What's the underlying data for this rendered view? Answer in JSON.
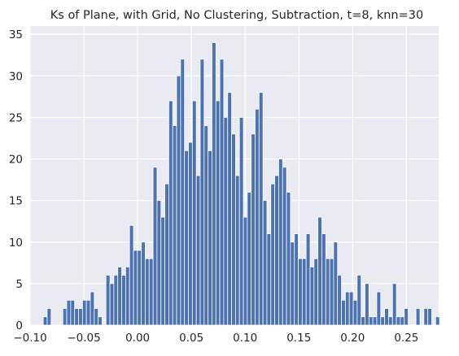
{
  "chart_data": {
    "type": "bar",
    "title": "Ks of Plane, with Grid, No Clustering, Subtraction, t=8, knn=30",
    "xlabel": "",
    "ylabel": "",
    "xlim": [
      -0.1,
      0.28
    ],
    "ylim": [
      0,
      36
    ],
    "grid": true,
    "bar_color": "#4c72b0",
    "background_color": "#eaeaf2",
    "bin_start": -0.0878,
    "bin_width": 0.00365,
    "values": [
      1,
      2,
      0,
      0,
      0,
      2,
      3,
      3,
      2,
      2,
      3,
      3,
      4,
      2,
      1,
      0,
      6,
      5,
      6,
      7,
      6,
      7,
      12,
      9,
      9,
      10,
      8,
      8,
      19,
      15,
      13,
      17,
      27,
      24,
      30,
      32,
      21,
      22,
      27,
      18,
      32,
      24,
      21,
      34,
      27,
      32,
      25,
      28,
      23,
      18,
      25,
      13,
      16,
      23,
      26,
      28,
      15,
      11,
      17,
      18,
      20,
      19,
      16,
      10,
      11,
      8,
      8,
      11,
      7,
      8,
      13,
      11,
      8,
      8,
      10,
      6,
      3,
      4,
      4,
      3,
      6,
      1,
      5,
      1,
      1,
      4,
      1,
      2,
      1,
      5,
      1,
      1,
      2,
      0,
      0,
      2,
      0,
      2,
      2,
      0,
      1
    ],
    "x_ticks": [
      {
        "value": -0.1,
        "label": "−0.10"
      },
      {
        "value": -0.05,
        "label": "−0.05"
      },
      {
        "value": 0.0,
        "label": "0.00"
      },
      {
        "value": 0.05,
        "label": "0.05"
      },
      {
        "value": 0.1,
        "label": "0.10"
      },
      {
        "value": 0.15,
        "label": "0.15"
      },
      {
        "value": 0.2,
        "label": "0.20"
      },
      {
        "value": 0.25,
        "label": "0.25"
      }
    ],
    "y_ticks": [
      {
        "value": 0,
        "label": "0"
      },
      {
        "value": 5,
        "label": "5"
      },
      {
        "value": 10,
        "label": "10"
      },
      {
        "value": 15,
        "label": "15"
      },
      {
        "value": 20,
        "label": "20"
      },
      {
        "value": 25,
        "label": "25"
      },
      {
        "value": 30,
        "label": "30"
      },
      {
        "value": 35,
        "label": "35"
      }
    ]
  }
}
